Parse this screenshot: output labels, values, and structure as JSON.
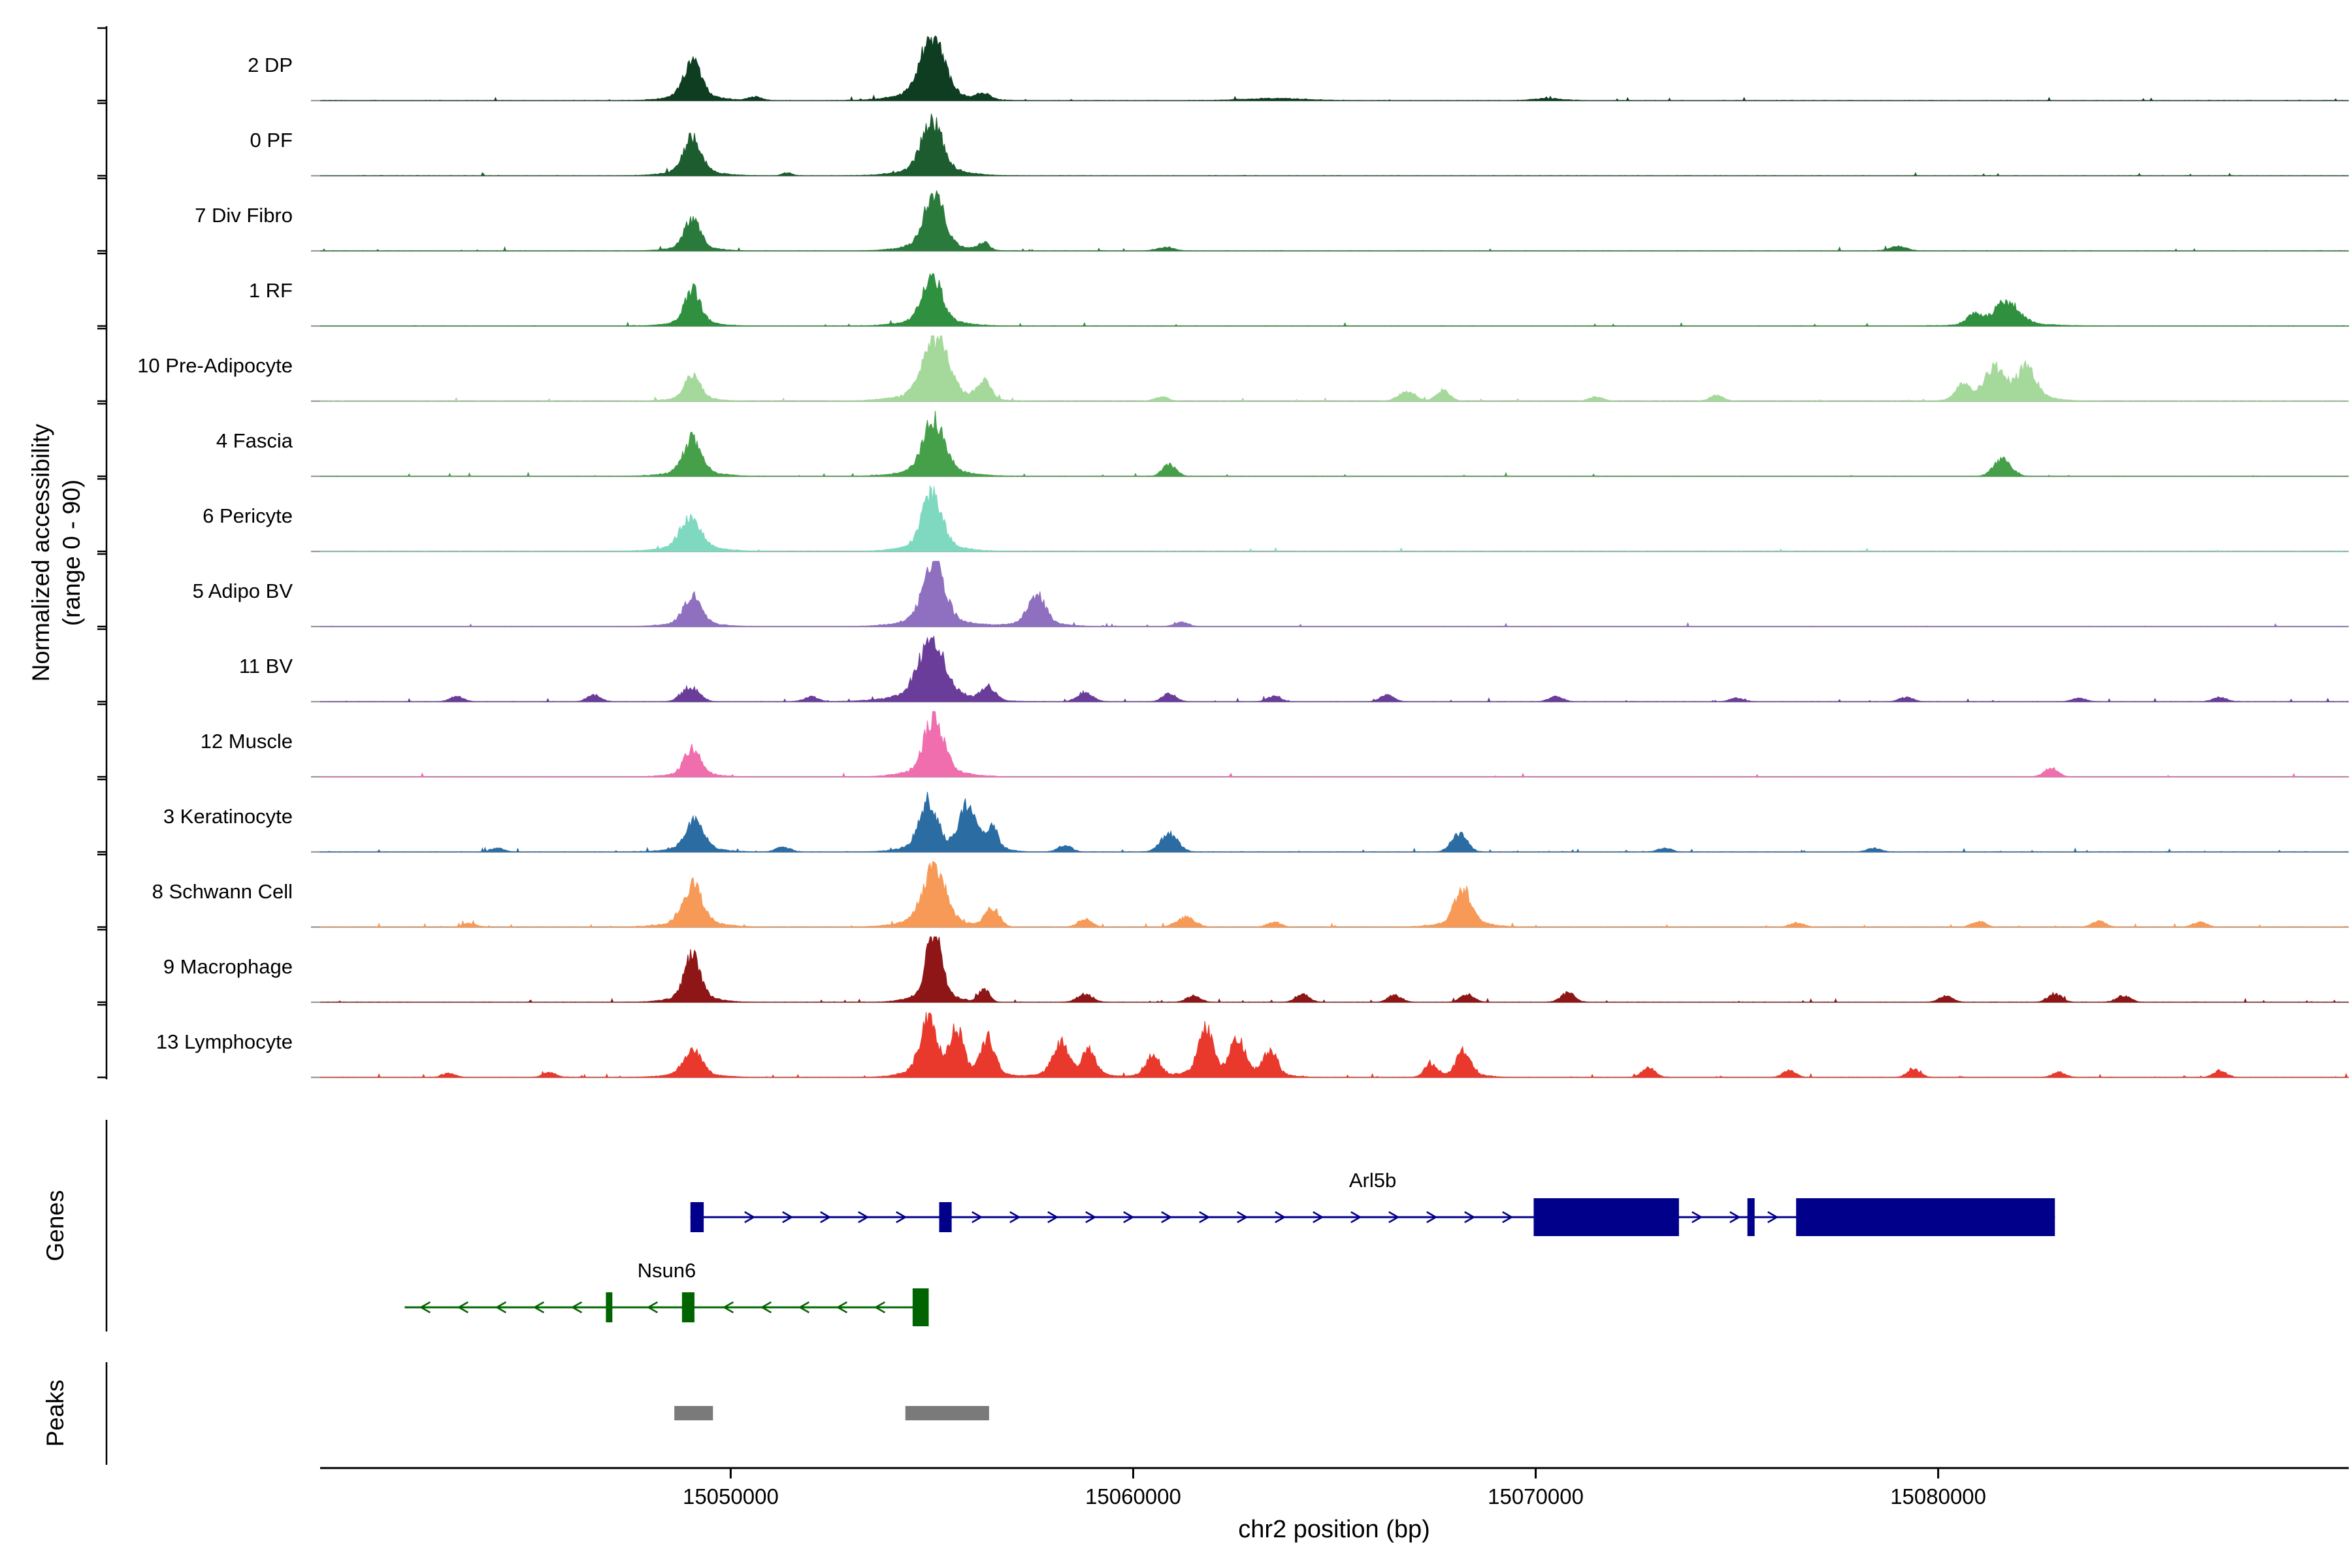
{
  "figure": {
    "y_axis_label_line1": "Normalized accessibility",
    "y_axis_label_line2": "(range 0 - 90)",
    "genes_section_label": "Genes",
    "peaks_section_label": "Peaks",
    "x_axis_label": "chr2 position (bp)"
  },
  "chart_data": {
    "type": "area",
    "description": "Genome-browser style chromatin accessibility coverage tracks per cell type over chr2:15039800-15090200, with gene models and called peak regions.",
    "chromosome": "chr2",
    "x_domain_bp": [
      15039800,
      15090200
    ],
    "x_ticks": [
      15050000,
      15060000,
      15070000,
      15080000
    ],
    "x_label": "chr2 position (bp)",
    "y_label": "Normalized accessibility (range 0 - 90)",
    "per_track_ylim": [
      0,
      90
    ],
    "tracks": [
      {
        "label": "2 DP",
        "color": "#0f3d21",
        "noise": 0.25,
        "peaks": [
          [
            15049050,
            47,
            500
          ],
          [
            15055000,
            79,
            650
          ],
          [
            15050600,
            5,
            400
          ],
          [
            15056300,
            8,
            350
          ],
          [
            15063500,
            3,
            1800
          ],
          [
            15070300,
            3,
            800
          ]
        ]
      },
      {
        "label": "0 PF",
        "color": "#1c5c2e",
        "noise": 0.2,
        "peaks": [
          [
            15049050,
            45,
            500
          ],
          [
            15055000,
            65,
            600
          ],
          [
            15051400,
            4,
            300
          ]
        ]
      },
      {
        "label": "7 Div Fibro",
        "color": "#2a7a3c",
        "noise": 0.3,
        "peaks": [
          [
            15049050,
            38,
            450
          ],
          [
            15055050,
            70,
            550
          ],
          [
            15056300,
            10,
            300
          ],
          [
            15060800,
            5,
            500
          ],
          [
            15079000,
            6,
            500
          ]
        ]
      },
      {
        "label": "1 RF",
        "color": "#2f9140",
        "noise": 0.25,
        "peaks": [
          [
            15049050,
            43,
            450
          ],
          [
            15055000,
            61,
            550
          ],
          [
            15080900,
            14,
            400
          ],
          [
            15081700,
            29,
            700
          ]
        ]
      },
      {
        "label": "10 Pre-Adipocyte",
        "color": "#a5d99b",
        "noise": 0.5,
        "peaks": [
          [
            15049050,
            30,
            450
          ],
          [
            15055100,
            74,
            700
          ],
          [
            15056300,
            25,
            400
          ],
          [
            15060700,
            6,
            400
          ],
          [
            15066800,
            13,
            500
          ],
          [
            15067700,
            15,
            400
          ],
          [
            15071500,
            6,
            400
          ],
          [
            15074500,
            8,
            400
          ],
          [
            15080600,
            20,
            400
          ],
          [
            15081400,
            38,
            600
          ],
          [
            15082200,
            40,
            500
          ]
        ]
      },
      {
        "label": "4 Fascia",
        "color": "#46a04a",
        "noise": 0.3,
        "peaks": [
          [
            15049050,
            45,
            500
          ],
          [
            15055050,
            68,
            600
          ],
          [
            15060900,
            16,
            400
          ],
          [
            15081600,
            24,
            500
          ]
        ]
      },
      {
        "label": "6 Pericyte",
        "color": "#7fd8c0",
        "noise": 0.2,
        "peaks": [
          [
            15049000,
            40,
            600
          ],
          [
            15055000,
            70,
            550
          ]
        ]
      },
      {
        "label": "5 Adipo BV",
        "color": "#8e6fc0",
        "noise": 0.3,
        "peaks": [
          [
            15049050,
            36,
            500
          ],
          [
            15055050,
            77,
            600
          ],
          [
            15057600,
            38,
            500
          ],
          [
            15061200,
            6,
            400
          ]
        ]
      },
      {
        "label": "11 BV",
        "color": "#6a3d9a",
        "noise": 0.7,
        "peaks": [
          [
            15049000,
            20,
            500
          ],
          [
            15055000,
            72,
            750
          ],
          [
            15056400,
            18,
            400
          ],
          [
            15043200,
            7,
            400
          ],
          [
            15046600,
            9,
            400
          ],
          [
            15052000,
            7,
            400
          ],
          [
            15058800,
            13,
            450
          ],
          [
            15060900,
            11,
            400
          ],
          [
            15063500,
            7,
            400
          ],
          [
            15066300,
            9,
            400
          ],
          [
            15070500,
            7,
            400
          ],
          [
            15075000,
            5,
            400
          ],
          [
            15079200,
            6,
            400
          ],
          [
            15083500,
            5,
            400
          ],
          [
            15087000,
            6,
            400
          ]
        ]
      },
      {
        "label": "12 Muscle",
        "color": "#f06eae",
        "noise": 0.3,
        "peaks": [
          [
            15049050,
            34,
            450
          ],
          [
            15055050,
            72,
            550
          ],
          [
            15082800,
            12,
            400
          ]
        ]
      },
      {
        "label": "3 Keratinocyte",
        "color": "#2b6ca3",
        "noise": 0.5,
        "peaks": [
          [
            15049100,
            40,
            500
          ],
          [
            15054900,
            61,
            500
          ],
          [
            15055900,
            56,
            450
          ],
          [
            15056500,
            27,
            300
          ],
          [
            15060900,
            25,
            500
          ],
          [
            15068100,
            25,
            450
          ],
          [
            15044200,
            5,
            400
          ],
          [
            15051300,
            7,
            400
          ],
          [
            15058300,
            9,
            400
          ],
          [
            15073200,
            5,
            400
          ],
          [
            15078400,
            5,
            400
          ]
        ]
      },
      {
        "label": "8 Schwann Cell",
        "color": "#f79a58",
        "noise": 0.6,
        "peaks": [
          [
            15049050,
            50,
            550
          ],
          [
            15055050,
            77,
            600
          ],
          [
            15056500,
            25,
            400
          ],
          [
            15061300,
            13,
            550
          ],
          [
            15068200,
            45,
            500
          ],
          [
            15043500,
            5,
            400
          ],
          [
            15058800,
            11,
            400
          ],
          [
            15063500,
            7,
            400
          ],
          [
            15076500,
            6,
            400
          ],
          [
            15081000,
            8,
            400
          ],
          [
            15084000,
            8,
            400
          ],
          [
            15086500,
            7,
            400
          ]
        ]
      },
      {
        "label": "9 Macrophage",
        "color": "#8e1616",
        "noise": 0.7,
        "peaks": [
          [
            15049050,
            56,
            450
          ],
          [
            15055050,
            87,
            420
          ],
          [
            15056300,
            18,
            300
          ],
          [
            15058800,
            11,
            450
          ],
          [
            15061500,
            9,
            400
          ],
          [
            15064200,
            11,
            400
          ],
          [
            15066500,
            9,
            400
          ],
          [
            15068300,
            11,
            400
          ],
          [
            15070800,
            13,
            400
          ],
          [
            15080200,
            9,
            400
          ],
          [
            15082900,
            11,
            400
          ],
          [
            15084600,
            9,
            400
          ]
        ]
      },
      {
        "label": "13 Lymphocyte",
        "color": "#e8392c",
        "noise": 0.8,
        "peaks": [
          [
            15049050,
            34,
            500
          ],
          [
            15054900,
            65,
            480
          ],
          [
            15055600,
            54,
            380
          ],
          [
            15056400,
            45,
            380
          ],
          [
            15058200,
            40,
            450
          ],
          [
            15058900,
            31,
            380
          ],
          [
            15060500,
            27,
            380
          ],
          [
            15061800,
            56,
            420
          ],
          [
            15062600,
            45,
            400
          ],
          [
            15063400,
            31,
            380
          ],
          [
            15067400,
            18,
            380
          ],
          [
            15068200,
            31,
            400
          ],
          [
            15072800,
            13,
            380
          ],
          [
            15076300,
            9,
            380
          ],
          [
            15079400,
            11,
            380
          ],
          [
            15083000,
            7,
            380
          ],
          [
            15087000,
            9,
            380
          ],
          [
            15043000,
            6,
            380
          ],
          [
            15045500,
            7,
            380
          ]
        ]
      }
    ],
    "genes": [
      {
        "name": "Arl5b",
        "strand": "+",
        "color": "#00008b",
        "start": 15049000,
        "end": 15082900,
        "exons": [
          [
            15049000,
            15049330,
            "s"
          ],
          [
            15055180,
            15055490,
            "s"
          ],
          [
            15069950,
            15073560,
            "l"
          ],
          [
            15075260,
            15075440,
            "l"
          ],
          [
            15076470,
            15082900,
            "l"
          ]
        ]
      },
      {
        "name": "Nsun6",
        "strand": "-",
        "color": "#006400",
        "start": 15041900,
        "end": 15054920,
        "exons": [
          [
            15046900,
            15047060,
            "s"
          ],
          [
            15048790,
            15049100,
            "s"
          ],
          [
            15054520,
            15054920,
            "l"
          ]
        ]
      }
    ],
    "peak_regions": [
      [
        15048600,
        15049560
      ],
      [
        15054340,
        15056420
      ]
    ]
  }
}
